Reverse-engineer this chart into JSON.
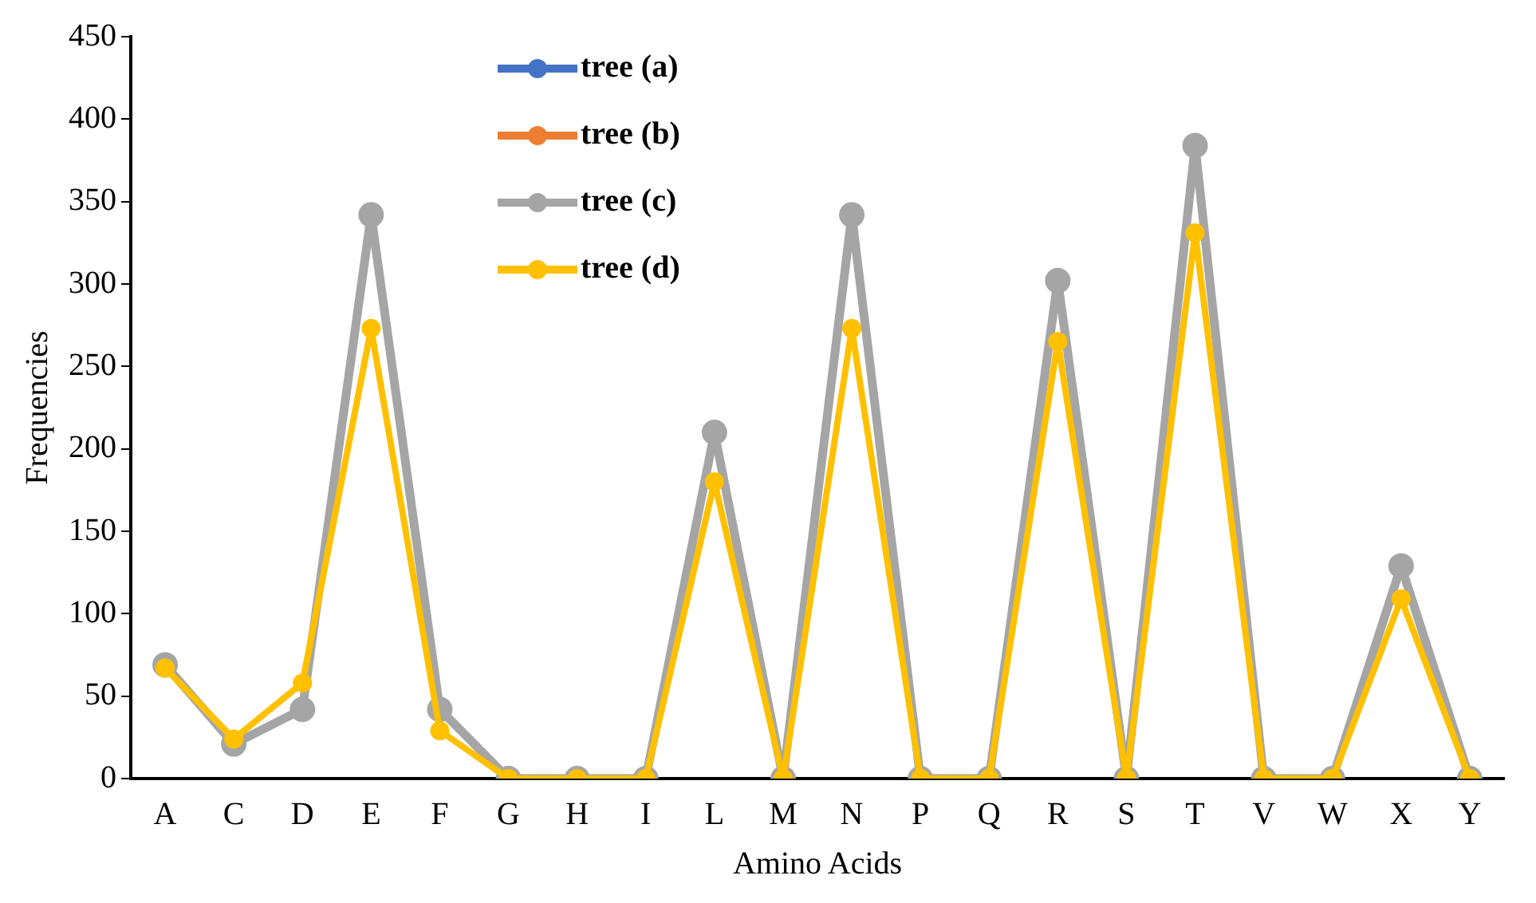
{
  "chart_data": {
    "type": "line",
    "xlabel": "Amino Acids",
    "ylabel": "Frequencies",
    "categories": [
      "A",
      "C",
      "D",
      "E",
      "F",
      "G",
      "H",
      "I",
      "L",
      "M",
      "N",
      "P",
      "Q",
      "R",
      "S",
      "T",
      "V",
      "W",
      "X",
      "Y"
    ],
    "series": [
      {
        "name": "tree (a)",
        "color": "#4472c4",
        "values": [
          null,
          null,
          null,
          null,
          null,
          null,
          null,
          null,
          null,
          null,
          null,
          null,
          null,
          null,
          null,
          null,
          null,
          null,
          null,
          null
        ]
      },
      {
        "name": "tree (b)",
        "color": "#ed7d31",
        "values": [
          null,
          null,
          null,
          null,
          null,
          null,
          null,
          null,
          null,
          null,
          null,
          null,
          null,
          null,
          null,
          null,
          null,
          null,
          null,
          null
        ]
      },
      {
        "name": "tree (c)",
        "color": "#a5a5a5",
        "values": [
          69,
          21,
          42,
          342,
          42,
          0,
          0,
          0,
          210,
          0,
          342,
          0,
          0,
          302,
          0,
          384,
          0,
          0,
          129,
          0
        ]
      },
      {
        "name": "tree (d)",
        "color": "#ffc000",
        "values": [
          67,
          24,
          58,
          273,
          29,
          0,
          0,
          0,
          180,
          0,
          273,
          0,
          0,
          265,
          0,
          331,
          0,
          0,
          109,
          0
        ]
      }
    ],
    "ylim": [
      0,
      450
    ],
    "yticks": [
      0,
      50,
      100,
      150,
      200,
      250,
      300,
      350,
      400,
      450
    ],
    "grid": false,
    "legend": "top",
    "marker": "circle",
    "line_style": "solid"
  }
}
